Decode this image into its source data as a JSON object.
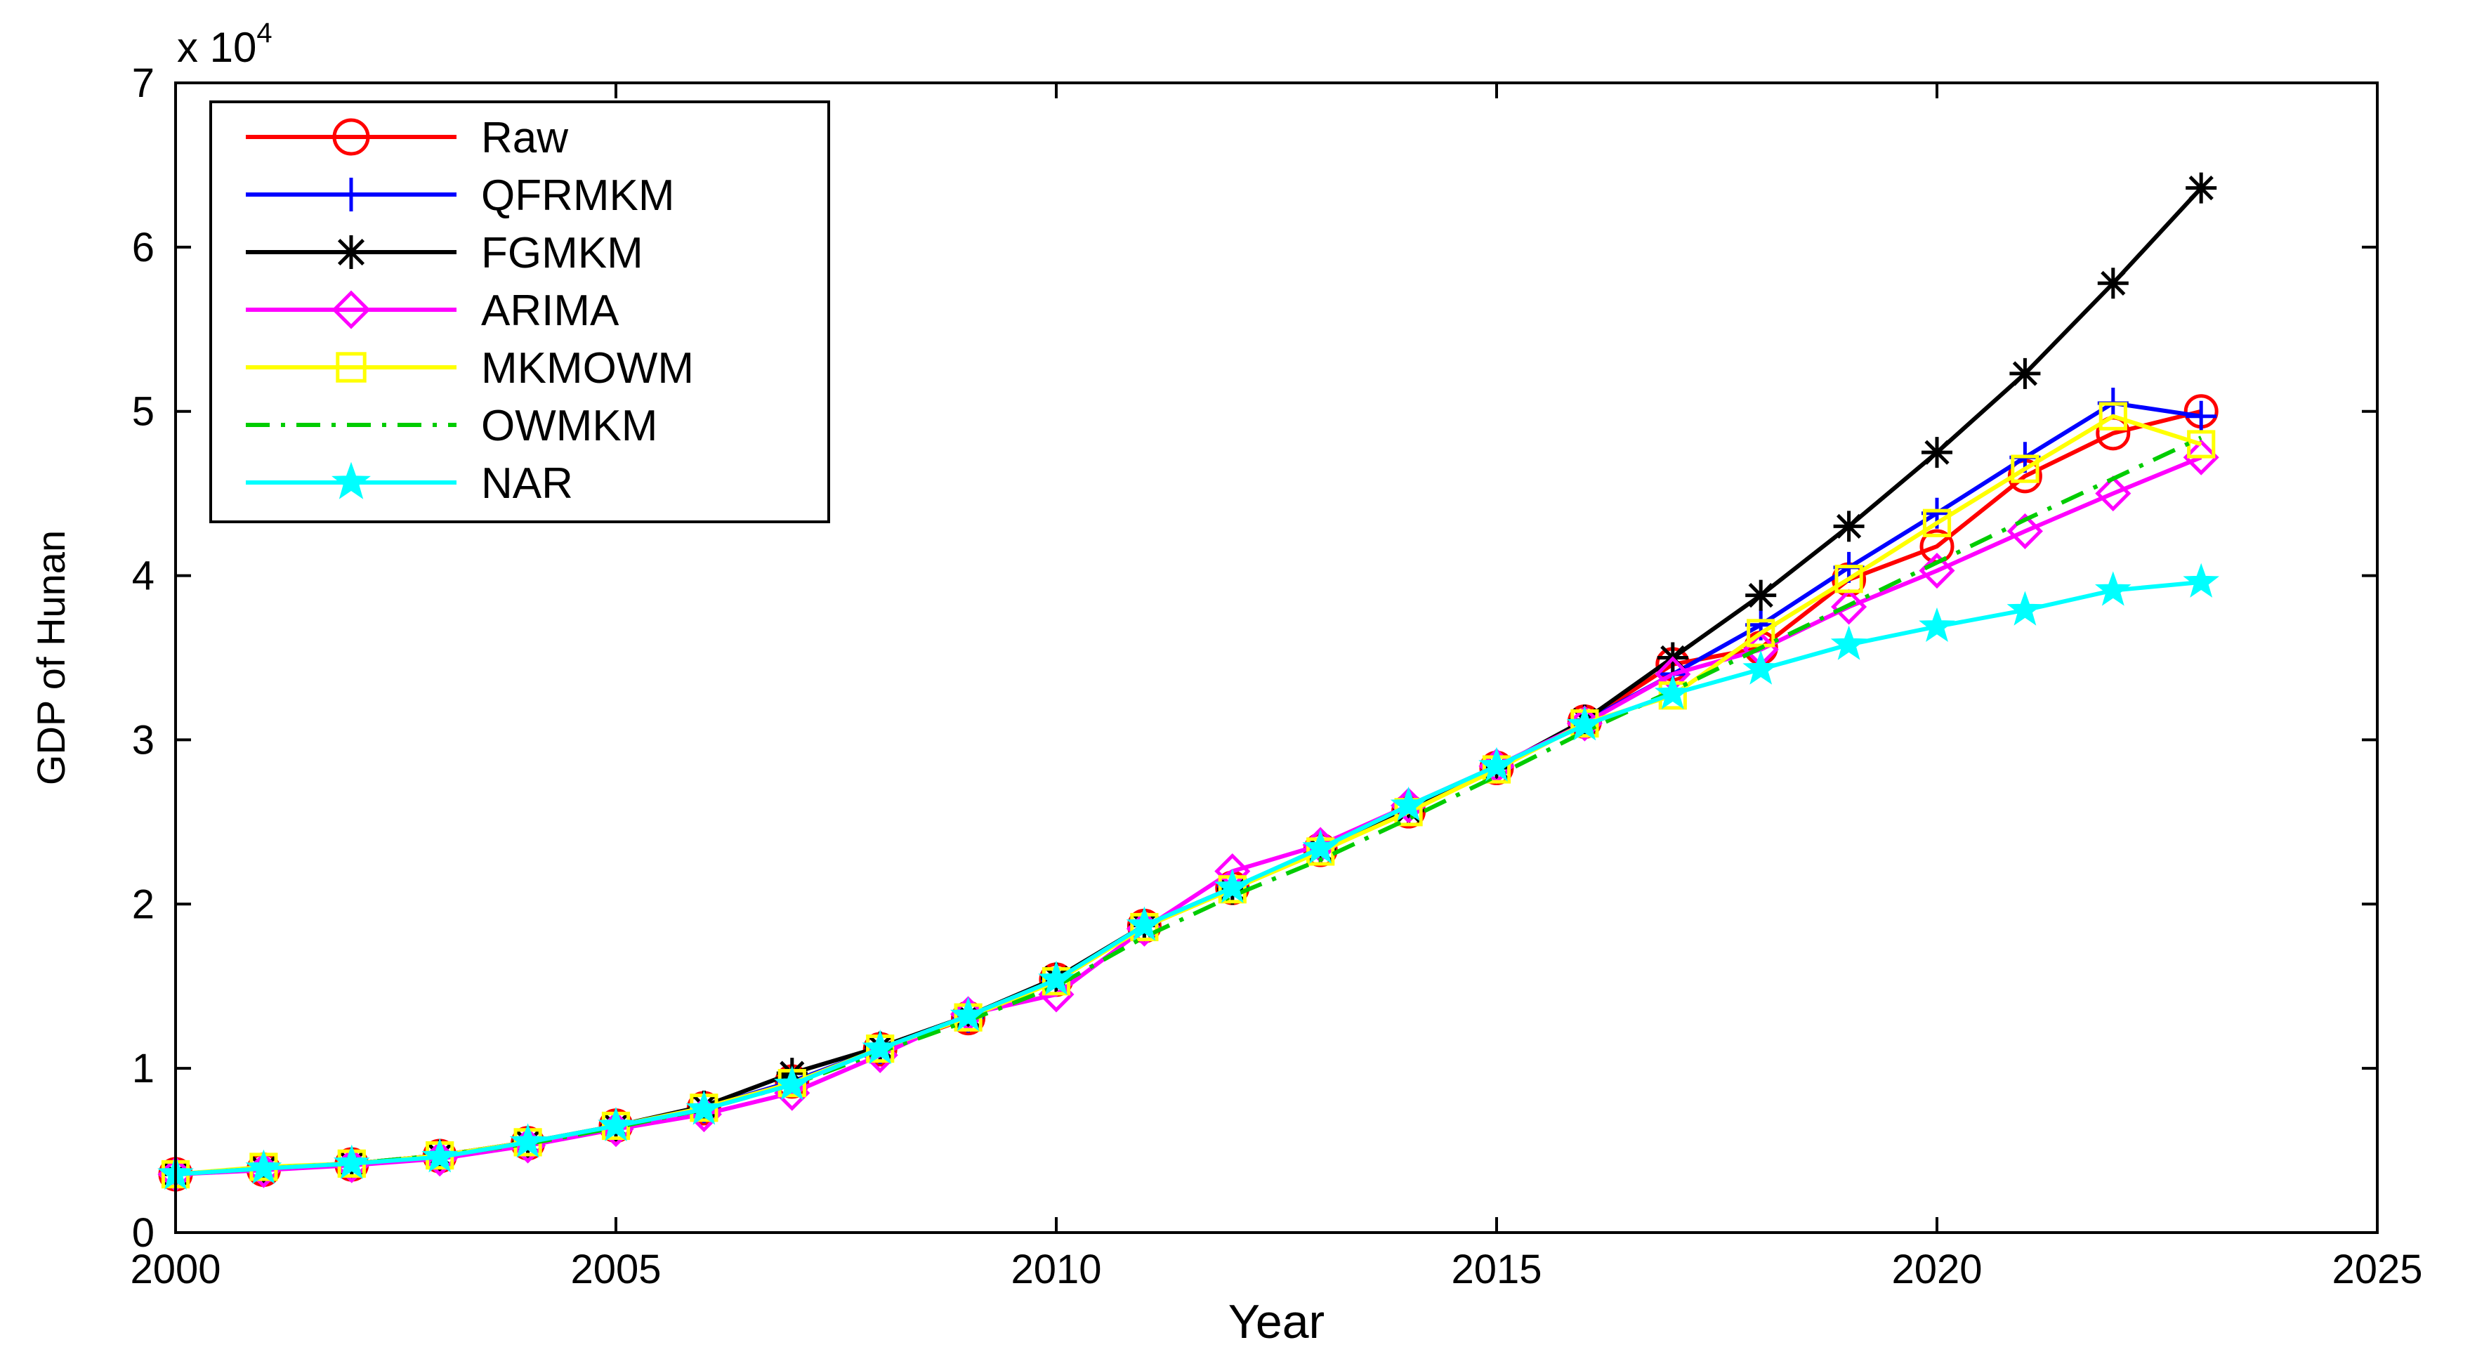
{
  "chart_data": {
    "type": "line",
    "xlabel": "Year",
    "ylabel": "GDP of Hunan",
    "exponent_label": "x 10",
    "exponent_power": "4",
    "xlim": [
      2000,
      2025
    ],
    "ylim": [
      0,
      7
    ],
    "xticks": [
      "2000",
      "2005",
      "2010",
      "2015",
      "2020",
      "2025"
    ],
    "yticks": [
      "0",
      "1",
      "2",
      "3",
      "4",
      "5",
      "6",
      "7"
    ],
    "legend_position": "top-left",
    "grid": false,
    "series": [
      {
        "name": "Raw",
        "color": "#ff0000",
        "marker": "circle",
        "dash": "solid",
        "x": [
          2000,
          2001,
          2002,
          2003,
          2004,
          2005,
          2006,
          2007,
          2008,
          2009,
          2010,
          2011,
          2012,
          2013,
          2014,
          2015,
          2016,
          2017,
          2018,
          2019,
          2020,
          2021,
          2022,
          2023
        ],
        "y": [
          0.355,
          0.383,
          0.415,
          0.466,
          0.544,
          0.651,
          0.757,
          0.92,
          1.116,
          1.306,
          1.54,
          1.867,
          2.099,
          2.33,
          2.565,
          2.829,
          3.111,
          3.46,
          3.56,
          3.976,
          4.178,
          4.606,
          4.867,
          5.0
        ]
      },
      {
        "name": "QFRMKM",
        "color": "#0000ff",
        "marker": "plus",
        "dash": "solid",
        "x": [
          2000,
          2001,
          2002,
          2003,
          2004,
          2005,
          2006,
          2007,
          2008,
          2009,
          2010,
          2011,
          2012,
          2013,
          2014,
          2015,
          2016,
          2017,
          2018,
          2019,
          2020,
          2021,
          2022,
          2023
        ],
        "y": [
          0.355,
          0.39,
          0.42,
          0.47,
          0.55,
          0.65,
          0.76,
          0.92,
          1.12,
          1.31,
          1.54,
          1.87,
          2.1,
          2.33,
          2.57,
          2.83,
          3.11,
          3.4,
          3.7,
          4.05,
          4.38,
          4.72,
          5.05,
          4.97
        ]
      },
      {
        "name": "FGMKM",
        "color": "#000000",
        "marker": "asterisk",
        "dash": "solid",
        "x": [
          2000,
          2001,
          2002,
          2003,
          2004,
          2005,
          2006,
          2007,
          2008,
          2009,
          2010,
          2011,
          2012,
          2013,
          2014,
          2015,
          2016,
          2017,
          2018,
          2019,
          2020,
          2021,
          2022,
          2023
        ],
        "y": [
          0.355,
          0.39,
          0.42,
          0.47,
          0.55,
          0.65,
          0.77,
          0.97,
          1.13,
          1.32,
          1.55,
          1.87,
          2.09,
          2.33,
          2.57,
          2.83,
          3.12,
          3.5,
          3.88,
          4.3,
          4.75,
          5.23,
          5.78,
          6.36
        ]
      },
      {
        "name": "ARIMA",
        "color": "#ff00ff",
        "marker": "diamond",
        "dash": "solid",
        "x": [
          2000,
          2001,
          2002,
          2003,
          2004,
          2005,
          2006,
          2007,
          2008,
          2009,
          2010,
          2011,
          2012,
          2013,
          2014,
          2015,
          2016,
          2017,
          2018,
          2019,
          2020,
          2021,
          2022,
          2023
        ],
        "y": [
          0.355,
          0.38,
          0.41,
          0.45,
          0.53,
          0.63,
          0.72,
          0.85,
          1.08,
          1.33,
          1.45,
          1.85,
          2.2,
          2.36,
          2.6,
          2.84,
          3.1,
          3.4,
          3.55,
          3.81,
          4.03,
          4.27,
          4.5,
          4.72
        ]
      },
      {
        "name": "MKMOWM",
        "color": "#ffff00",
        "marker": "square",
        "dash": "solid",
        "x": [
          2000,
          2001,
          2002,
          2003,
          2004,
          2005,
          2006,
          2007,
          2008,
          2009,
          2010,
          2011,
          2012,
          2013,
          2014,
          2015,
          2016,
          2017,
          2018,
          2019,
          2020,
          2021,
          2022,
          2023
        ],
        "y": [
          0.355,
          0.4,
          0.42,
          0.47,
          0.55,
          0.65,
          0.76,
          0.91,
          1.12,
          1.31,
          1.53,
          1.86,
          2.09,
          2.32,
          2.56,
          2.82,
          3.1,
          3.27,
          3.65,
          3.98,
          4.32,
          4.65,
          4.97,
          4.8
        ]
      },
      {
        "name": "OWMKM",
        "color": "#00cc00",
        "marker": "none",
        "dash": "dashdot",
        "x": [
          2000,
          2001,
          2002,
          2003,
          2004,
          2005,
          2006,
          2007,
          2008,
          2009,
          2010,
          2011,
          2012,
          2013,
          2014,
          2015,
          2016,
          2017,
          2018,
          2019,
          2020,
          2021,
          2022,
          2023
        ],
        "y": [
          0.355,
          0.39,
          0.42,
          0.47,
          0.54,
          0.64,
          0.75,
          0.9,
          1.1,
          1.29,
          1.5,
          1.8,
          2.05,
          2.27,
          2.52,
          2.78,
          3.05,
          3.3,
          3.56,
          3.82,
          4.08,
          4.34,
          4.59,
          4.84
        ]
      },
      {
        "name": "NAR",
        "color": "#00ffff",
        "marker": "star",
        "dash": "solid",
        "x": [
          2000,
          2001,
          2002,
          2003,
          2004,
          2005,
          2006,
          2007,
          2008,
          2009,
          2010,
          2011,
          2012,
          2013,
          2014,
          2015,
          2016,
          2017,
          2018,
          2019,
          2020,
          2021,
          2022,
          2023
        ],
        "y": [
          0.355,
          0.39,
          0.42,
          0.46,
          0.55,
          0.65,
          0.75,
          0.9,
          1.12,
          1.32,
          1.54,
          1.87,
          2.1,
          2.34,
          2.6,
          2.84,
          3.09,
          3.28,
          3.43,
          3.58,
          3.69,
          3.79,
          3.91,
          3.96
        ]
      }
    ]
  }
}
